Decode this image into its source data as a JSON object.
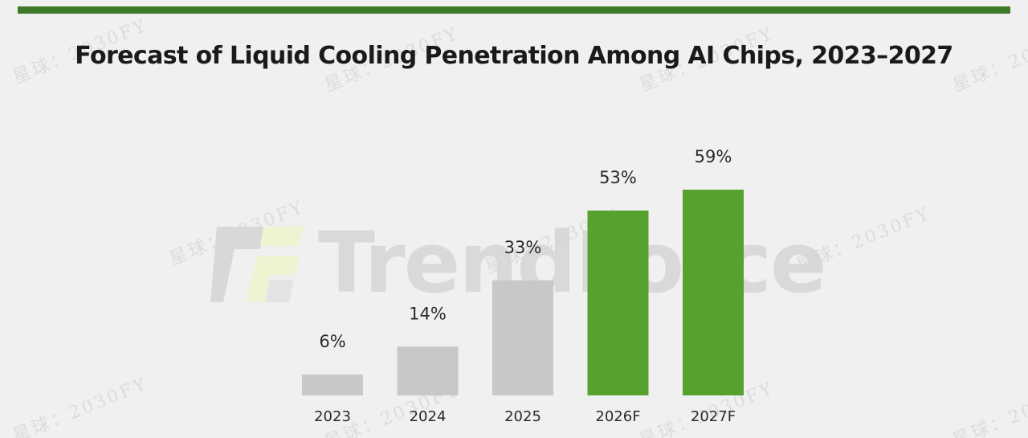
{
  "colors": {
    "actual": "#c8c8c8",
    "forecast": "#57a12f",
    "top_bar": "#3f7a28",
    "background": "#f0f0f0"
  },
  "watermark": {
    "logo_text": "TrendForce",
    "tag": "星球：2030FY"
  },
  "chart_data": {
    "type": "bar",
    "title": "Forecast of Liquid Cooling Penetration Among AI Chips, 2023–2027",
    "xlabel": "",
    "ylabel": "",
    "categories": [
      "2023",
      "2024",
      "2025",
      "2026F",
      "2027F"
    ],
    "values": [
      6,
      14,
      33,
      53,
      59
    ],
    "value_labels": [
      "6%",
      "14%",
      "33%",
      "53%",
      "59%"
    ],
    "forecast": [
      false,
      false,
      false,
      true,
      true
    ],
    "unit": "%",
    "ylim": [
      0,
      59
    ],
    "grid": false,
    "legend": "none"
  }
}
